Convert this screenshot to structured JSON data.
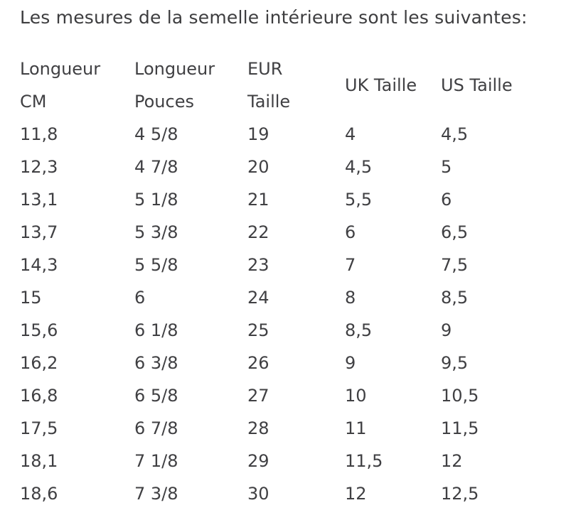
{
  "page": {
    "heading": "Les mesures de la semelle intérieure sont les suivantes:"
  },
  "colors": {
    "text": "#3d3d3f",
    "background": "#ffffff"
  },
  "table": {
    "headers": [
      {
        "line1": "Longueur",
        "line2": "CM"
      },
      {
        "line1": "Longueur",
        "line2": "Pouces"
      },
      {
        "line1": "EUR",
        "line2": "Taille"
      },
      {
        "label": "UK Taille"
      },
      {
        "label": "US Taille"
      }
    ],
    "rows": [
      [
        "11,8",
        "4 5/8",
        "19",
        "4",
        "4,5"
      ],
      [
        "12,3",
        "4 7/8",
        "20",
        "4,5",
        "5"
      ],
      [
        "13,1",
        "5 1/8",
        "21",
        "5,5",
        "6"
      ],
      [
        "13,7",
        "5 3/8",
        "22",
        "6",
        "6,5"
      ],
      [
        "14,3",
        "5 5/8",
        "23",
        "7",
        "7,5"
      ],
      [
        "15",
        "6",
        "24",
        "8",
        "8,5"
      ],
      [
        "15,6",
        "6 1/8",
        "25",
        "8,5",
        "9"
      ],
      [
        "16,2",
        "6 3/8",
        "26",
        "9",
        "9,5"
      ],
      [
        "16,8",
        "6 5/8",
        "27",
        "10",
        "10,5"
      ],
      [
        "17,5",
        "6 7/8",
        "28",
        "11",
        "11,5"
      ],
      [
        "18,1",
        "7 1/8",
        "29",
        "11,5",
        "12"
      ],
      [
        "18,6",
        "7 3/8",
        "30",
        "12",
        "12,5"
      ]
    ]
  }
}
